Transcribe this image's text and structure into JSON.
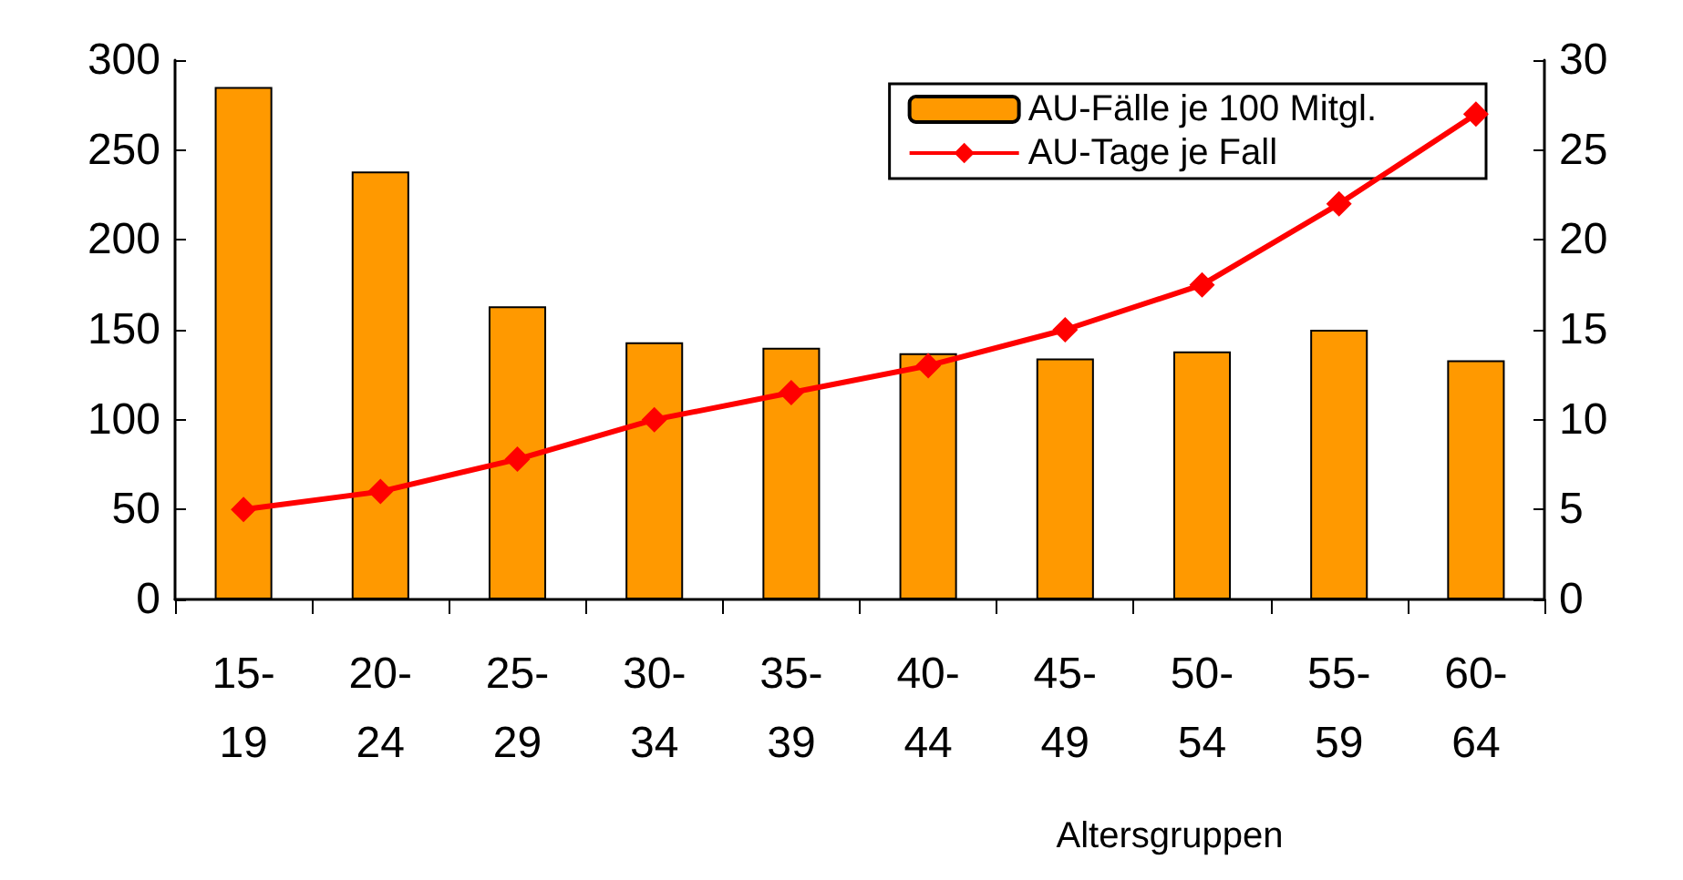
{
  "chart_data": {
    "type": "bar",
    "xlabel": "Altersgruppen",
    "categories": [
      "15-19",
      "20-24",
      "25-29",
      "30-34",
      "35-39",
      "40-44",
      "45-49",
      "50-54",
      "55-59",
      "60-64"
    ],
    "series": [
      {
        "name": "AU-Fälle je 100 Mitgl.",
        "color": "#ff9900",
        "values": [
          285,
          238,
          163,
          143,
          140,
          137,
          134,
          138,
          150,
          133
        ]
      },
      {
        "name": "AU-Tage je Fall",
        "type": "line",
        "axis": "y2",
        "color": "#ff0000",
        "marker": "diamond",
        "values": [
          5,
          6,
          7.8,
          10,
          11.5,
          13,
          15,
          17.5,
          22,
          27
        ]
      }
    ],
    "ylim": [
      0,
      300
    ],
    "yticks": [
      0,
      50,
      100,
      150,
      200,
      250,
      300
    ],
    "y2lim": [
      0,
      30
    ],
    "y2ticks": [
      0,
      5,
      10,
      15,
      20,
      25,
      30
    ],
    "grid": false,
    "legend": "top right"
  }
}
